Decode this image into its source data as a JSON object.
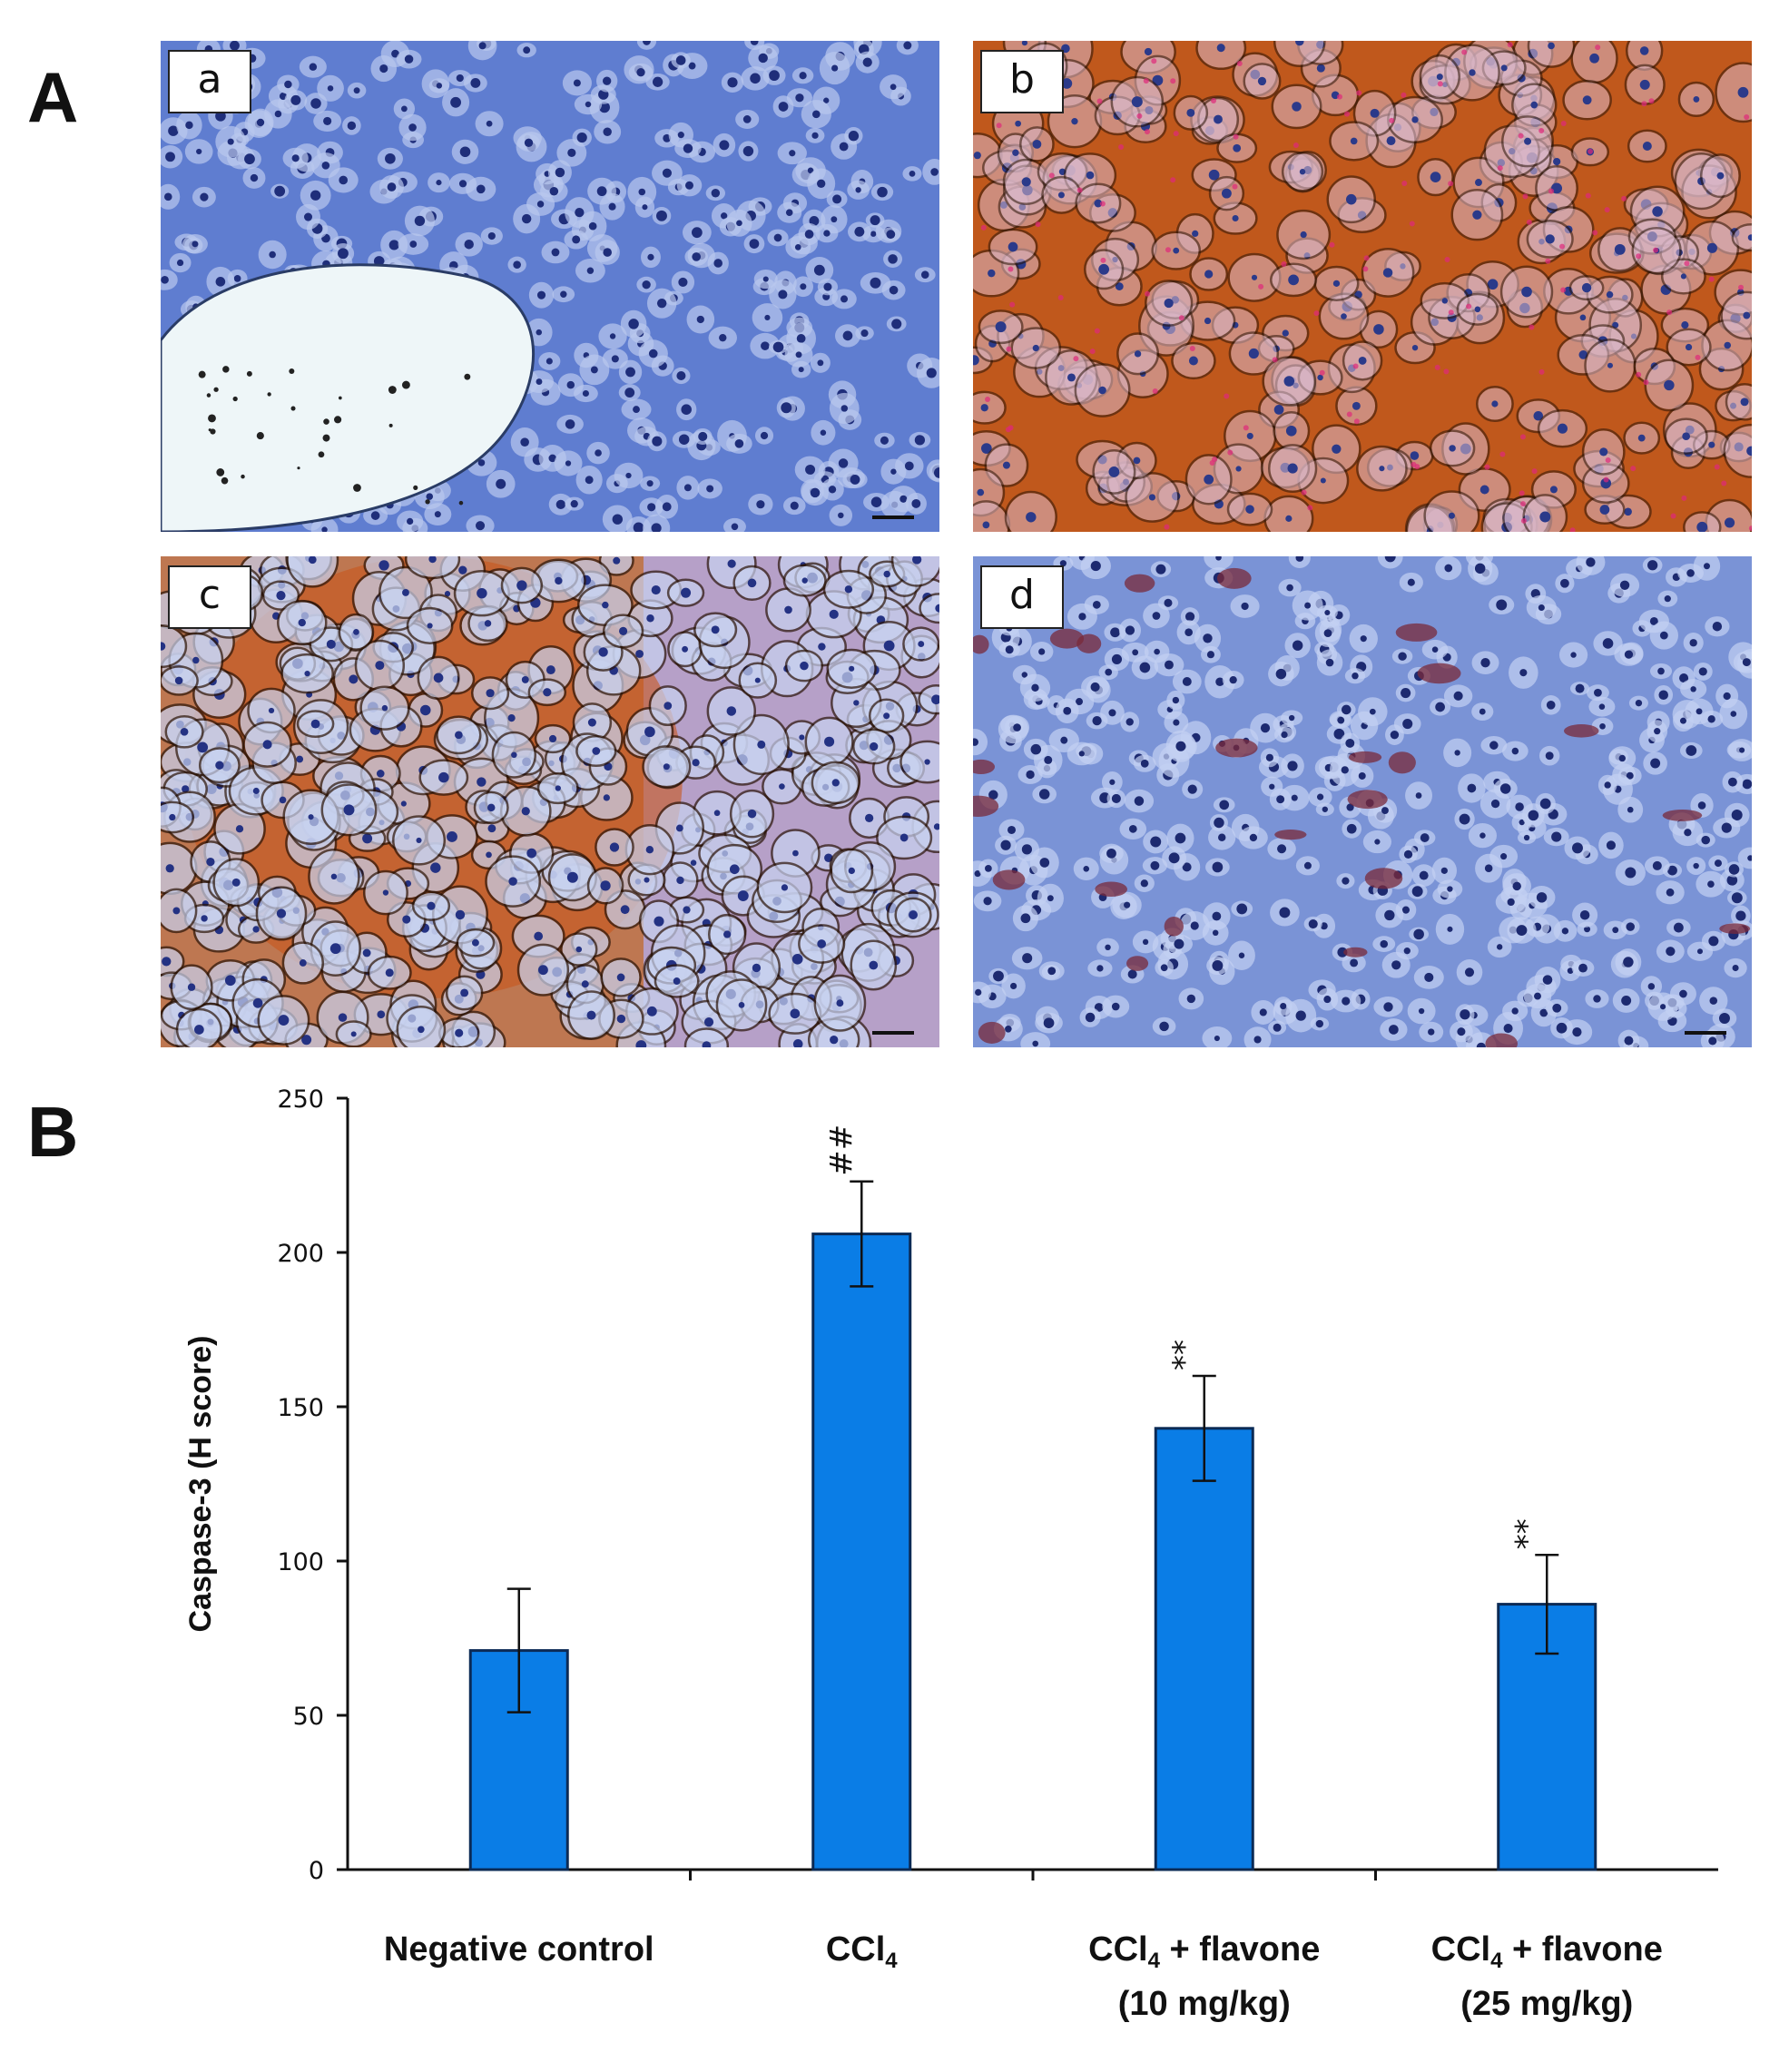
{
  "figure": {
    "panel_a_label": "A",
    "panel_b_label": "B",
    "micrographs": [
      {
        "label": "a",
        "stain": "blue",
        "colors": {
          "base": "#5f7dd0",
          "cell": "#b9c8ee",
          "nucleus": "#1f2e7a"
        }
      },
      {
        "label": "b",
        "stain": "brown",
        "colors": {
          "base": "#c0581c",
          "cell": "#d9b7c9",
          "nucleus": "#2b3a8a"
        }
      },
      {
        "label": "c",
        "stain": "mixed",
        "colors": {
          "base": "#b6a0c8",
          "cell": "#c8d2f0",
          "nucleus": "#243283"
        }
      },
      {
        "label": "d",
        "stain": "blue",
        "colors": {
          "base": "#7a93d6",
          "cell": "#c3d0f2",
          "nucleus": "#1d2a70"
        }
      }
    ]
  },
  "chart_data": {
    "type": "bar",
    "categories": [
      {
        "line1": "Negative control",
        "line2": ""
      },
      {
        "line1": "CCl",
        "sub": "4",
        "line1_rest": "",
        "line2": ""
      },
      {
        "line1": "CCl",
        "sub": "4",
        "line1_rest": " + flavone",
        "line2": "(10 mg/kg)"
      },
      {
        "line1": "CCl",
        "sub": "4",
        "line1_rest": " + flavone",
        "line2": "(25 mg/kg)"
      }
    ],
    "values": [
      71,
      206,
      143,
      86
    ],
    "errors": [
      20,
      17,
      17,
      16
    ],
    "significance": [
      "",
      "##",
      "**",
      "**"
    ],
    "ylabel": "Caspase-3  (H score)",
    "ylim": [
      0,
      250
    ],
    "yticks": [
      0,
      50,
      100,
      150,
      200,
      250
    ],
    "bar_color": "#0a7de6",
    "bar_edge": "#0b2a55"
  }
}
